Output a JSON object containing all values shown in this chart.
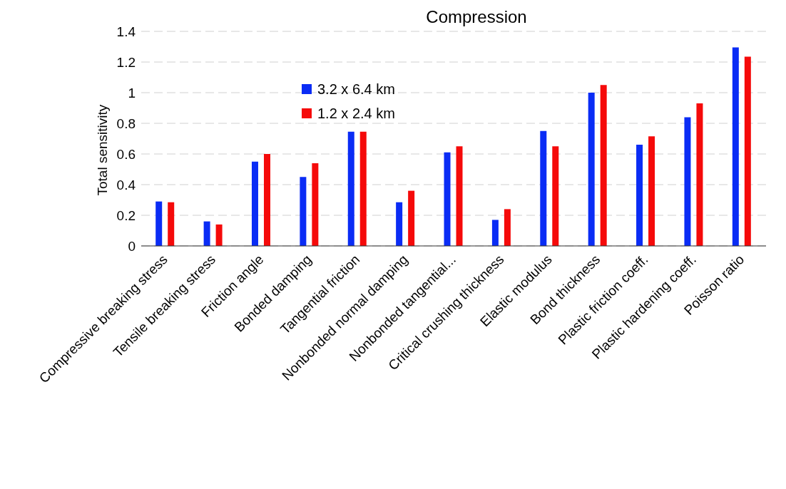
{
  "chart_data": {
    "type": "bar",
    "title": "Compression",
    "ylabel": "Total sensitivity",
    "categories": [
      "Compressive breaking stress",
      "Tensile breaking stress",
      "Friction angle",
      "Bonded damping",
      "Tangential friction",
      "Nonbonded normal damping",
      "Nonbonded tangential...",
      "Critical crushing thickness",
      "Elastic modulus",
      "Bond thickness",
      "Plastic friction coeff.",
      "Plastic hardening coeff.",
      "Poisson ratio"
    ],
    "series": [
      {
        "name": "3.2 x 6.4 km",
        "color": "#0a2cf5",
        "values": [
          0.29,
          0.16,
          0.55,
          0.45,
          0.745,
          0.285,
          0.61,
          0.17,
          0.75,
          1.0,
          0.66,
          0.84,
          1.295
        ]
      },
      {
        "name": "1.2 x 2.4 km",
        "color": "#f50a0a",
        "values": [
          0.285,
          0.14,
          0.6,
          0.54,
          0.745,
          0.36,
          0.65,
          0.24,
          0.65,
          1.05,
          0.715,
          0.93,
          1.235
        ]
      }
    ],
    "ylim": [
      0,
      1.4
    ],
    "yticks": [
      0,
      0.2,
      0.4,
      0.6,
      0.8,
      1,
      1.2,
      1.4
    ],
    "grid": "y",
    "legend": "top left"
  }
}
